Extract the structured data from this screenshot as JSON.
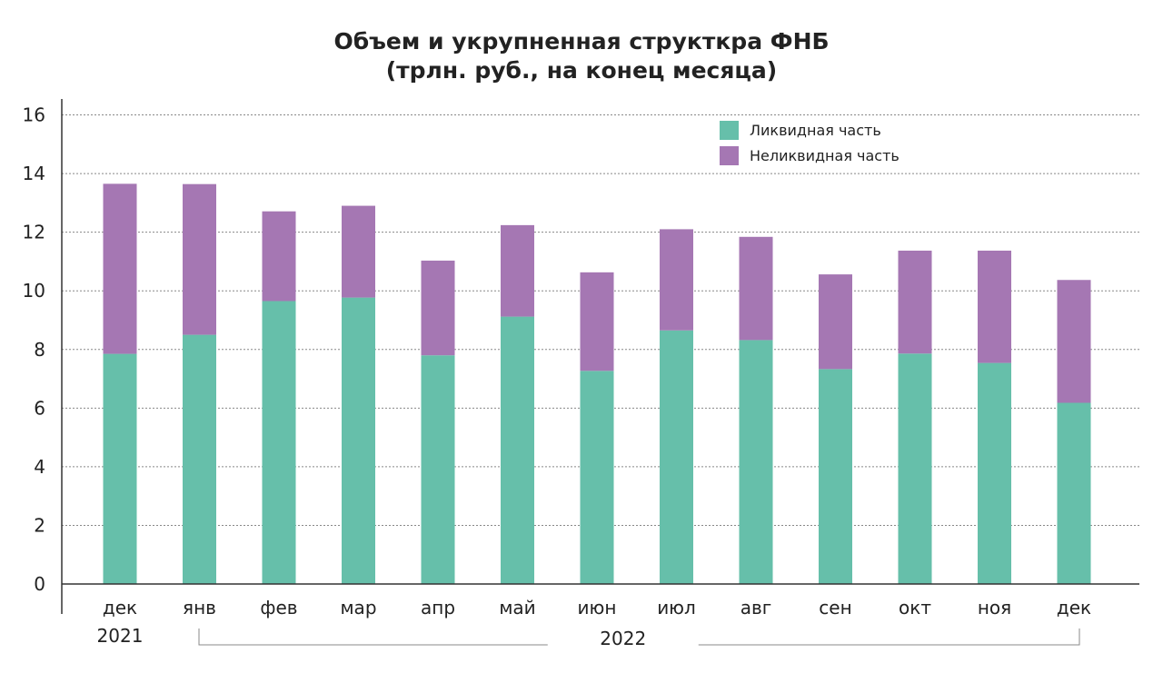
{
  "chart_data": {
    "type": "bar",
    "stacked": true,
    "title": "Объем и укрупненная структкра ФНБ",
    "subtitle": "(трлн. руб., на конец месяца)",
    "xlabel": "",
    "ylabel": "",
    "ylim": [
      0,
      16
    ],
    "yticks": [
      0,
      2,
      4,
      6,
      8,
      10,
      12,
      14,
      16
    ],
    "grid": true,
    "legend_position": "top-right",
    "categories": [
      "дек",
      "янв",
      "фев",
      "мар",
      "апр",
      "май",
      "июн",
      "июл",
      "авг",
      "сен",
      "окт",
      "ноя",
      "дек"
    ],
    "year_groups": [
      {
        "label": "2021",
        "bracket": false
      },
      {
        "label": "2022",
        "bracket": true
      }
    ],
    "series": [
      {
        "name": "Ликвидная часть",
        "color": "#66bfaa",
        "values": [
          7.85,
          8.5,
          9.65,
          9.77,
          7.8,
          9.12,
          7.27,
          8.65,
          8.32,
          7.33,
          7.86,
          7.54,
          6.18
        ]
      },
      {
        "name": "Неликвидная часть",
        "color": "#a577b3",
        "values": [
          5.8,
          5.14,
          3.06,
          3.13,
          3.23,
          3.12,
          3.36,
          3.45,
          3.52,
          3.23,
          3.51,
          3.83,
          4.19
        ]
      }
    ]
  }
}
